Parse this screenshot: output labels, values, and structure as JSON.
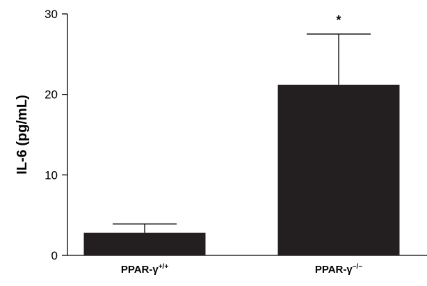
{
  "chart_data": {
    "type": "bar",
    "categories": [
      {
        "base": "PPAR-γ",
        "sup": "+/+"
      },
      {
        "base": "PPAR-γ",
        "sup": "−/−"
      }
    ],
    "values": [
      2.8,
      21.2
    ],
    "error_upper": [
      3.9,
      27.5
    ],
    "annotations": [
      "",
      "*"
    ],
    "ylabel": "IL-6 (pg/mL)",
    "xlabel": "",
    "title": "",
    "ylim": [
      0,
      30
    ],
    "yticks": [
      0,
      10,
      20,
      30
    ],
    "grid": false,
    "bar_color": "#231f20"
  }
}
